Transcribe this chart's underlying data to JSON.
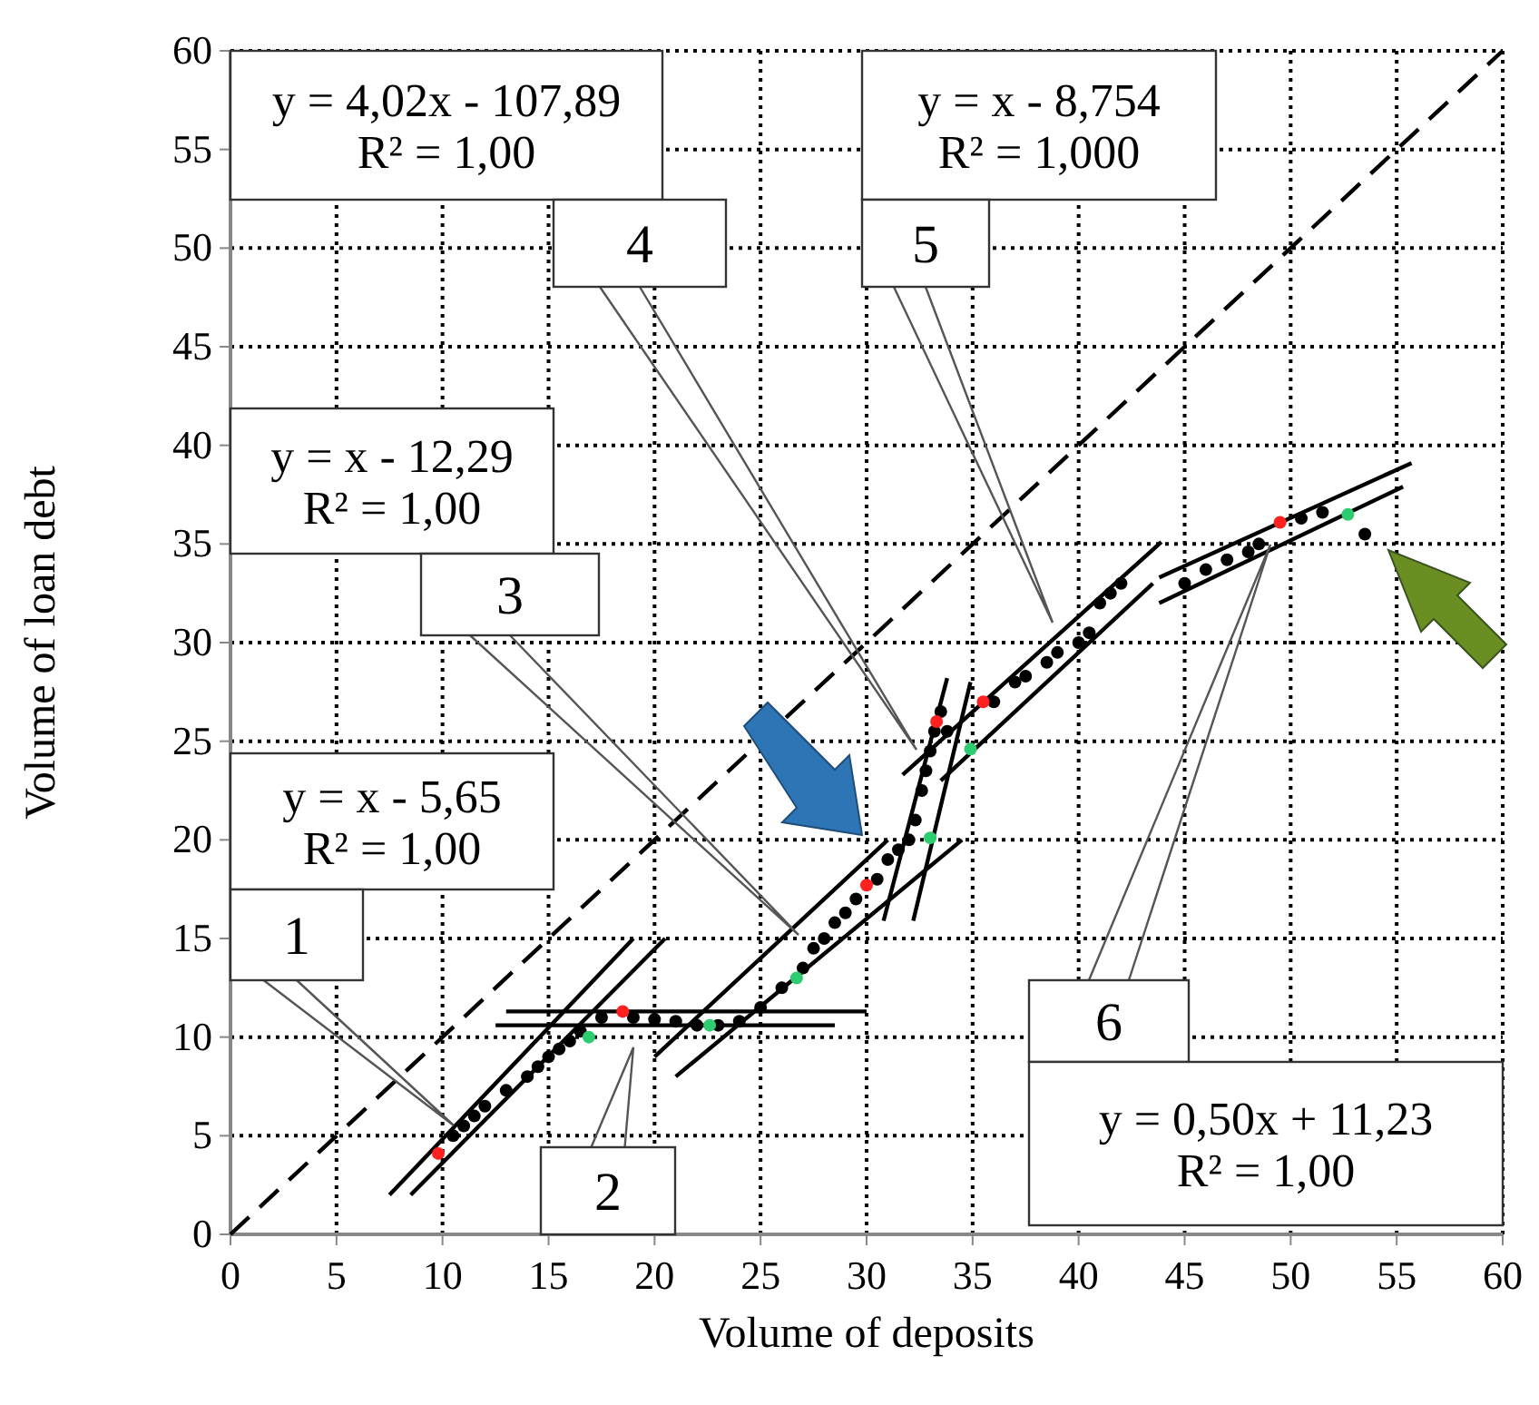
{
  "chart_data": {
    "type": "scatter",
    "xlabel": "Volume of deposits",
    "ylabel": "Volume of loan debt",
    "xlim": [
      0,
      60
    ],
    "ylim": [
      0,
      60
    ],
    "xticks": [
      0,
      5,
      10,
      15,
      20,
      25,
      30,
      35,
      40,
      45,
      50,
      55,
      60
    ],
    "yticks": [
      0,
      5,
      10,
      15,
      20,
      25,
      30,
      35,
      40,
      45,
      50,
      55,
      60
    ],
    "grid": true,
    "series": [
      {
        "type": "line",
        "color": "#000000",
        "line_style": "dashed",
        "x": [
          0,
          60
        ],
        "values": [
          0,
          60
        ]
      },
      {
        "type": "line",
        "color": "#000000",
        "line_style": "solid",
        "x": [
          7.5,
          19
        ],
        "values": [
          2,
          15
        ]
      },
      {
        "type": "line",
        "color": "#000000",
        "line_style": "solid",
        "x": [
          8.5,
          20.5
        ],
        "values": [
          2,
          15
        ]
      },
      {
        "type": "line",
        "color": "#000000",
        "line_style": "solid",
        "x": [
          13,
          30
        ],
        "values": [
          11.3,
          11.3
        ]
      },
      {
        "type": "line",
        "color": "#000000",
        "line_style": "solid",
        "x": [
          12.5,
          28.5
        ],
        "values": [
          10.6,
          10.6
        ]
      },
      {
        "type": "line",
        "color": "#000000",
        "line_style": "solid",
        "x": [
          20,
          31
        ],
        "values": [
          9,
          20
        ]
      },
      {
        "type": "line",
        "color": "#000000",
        "line_style": "solid",
        "x": [
          21,
          34.5
        ],
        "values": [
          8,
          20
        ]
      },
      {
        "type": "line",
        "color": "#000000",
        "line_style": "solid",
        "x": [
          30.8,
          33.8
        ],
        "values": [
          15.9,
          28.2
        ]
      },
      {
        "type": "line",
        "color": "#000000",
        "line_style": "solid",
        "x": [
          32.2,
          34.9
        ],
        "values": [
          15.9,
          28
        ]
      },
      {
        "type": "line",
        "color": "#000000",
        "line_style": "solid",
        "x": [
          31.7,
          43.9
        ],
        "values": [
          23.3,
          35.1
        ]
      },
      {
        "type": "line",
        "color": "#000000",
        "line_style": "solid",
        "x": [
          33.5,
          43.5
        ],
        "values": [
          23,
          33
        ]
      },
      {
        "type": "line",
        "color": "#000000",
        "line_style": "solid",
        "x": [
          43.8,
          55.7
        ],
        "values": [
          33.3,
          39.1
        ]
      },
      {
        "type": "line",
        "color": "#000000",
        "line_style": "solid",
        "x": [
          43.8,
          55.3
        ],
        "values": [
          32,
          37.9
        ]
      },
      {
        "color": "#000000",
        "marker": "circle",
        "x": [
          10.5,
          11,
          11.5,
          12,
          13,
          14,
          14.5,
          15,
          15.5,
          16,
          16.5,
          17.5,
          19,
          20,
          21,
          22,
          23,
          24,
          25,
          26,
          27,
          27.5,
          28,
          28.5,
          29,
          29.5,
          30.5,
          31,
          31.5,
          32,
          32.3,
          32.6,
          32.8,
          33,
          33.2,
          33.5,
          33.8,
          36,
          37,
          37.5,
          38.5,
          39,
          40,
          40.5,
          41,
          41.5,
          42,
          45,
          46,
          47,
          48,
          48.5,
          50.5,
          51.5,
          53.5
        ],
        "values": [
          5,
          5.5,
          6,
          6.5,
          7.3,
          8,
          8.5,
          9,
          9.4,
          9.8,
          10.3,
          11,
          11,
          10.9,
          10.8,
          10.6,
          10.6,
          10.8,
          11.5,
          12.5,
          13.5,
          14.5,
          15,
          15.8,
          16.3,
          17,
          18,
          19,
          19.5,
          20,
          21,
          22.5,
          23.5,
          24.5,
          25.5,
          26.5,
          25.5,
          27,
          28,
          28.3,
          29,
          29.5,
          30,
          30.5,
          32,
          32.5,
          33,
          33,
          33.7,
          34.2,
          34.6,
          35,
          36.3,
          36.6,
          35.5
        ]
      },
      {
        "color": "#ff2020",
        "marker": "circle",
        "x": [
          9.8,
          18.5,
          30,
          33.3,
          35.5,
          49.5
        ],
        "values": [
          4.1,
          11.3,
          17.7,
          26,
          27,
          36.1
        ]
      },
      {
        "color": "#2ecc71",
        "marker": "circle",
        "x": [
          16.9,
          22.6,
          26.7,
          33,
          34.9,
          52.7
        ],
        "values": [
          10,
          10.6,
          13,
          20.1,
          24.6,
          36.5
        ]
      }
    ],
    "annotations": [
      "y = 4,02x - 107,89\nR² = 1,00",
      "y = x - 8,754\nR² = 1,000",
      "y = x - 12,29\nR² = 1,00",
      "4",
      "5",
      "3",
      "y = x - 5,65\nR² = 1,00",
      "1",
      "2",
      "6",
      "y = 0,50x + 11,23\nR² = 1,00"
    ]
  }
}
